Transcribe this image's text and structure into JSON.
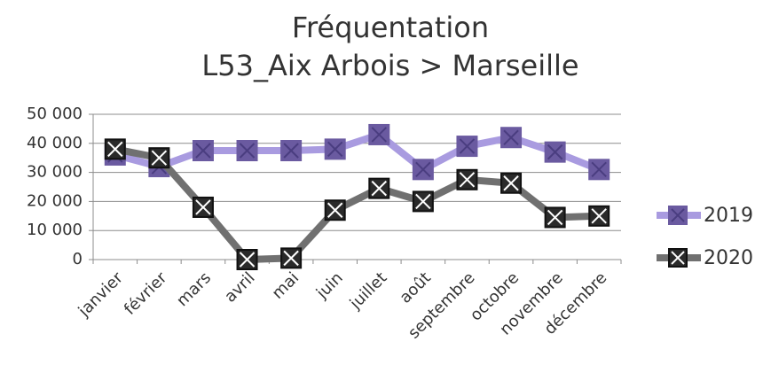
{
  "chart_data": {
    "type": "line",
    "title": "Fréquentation",
    "subtitle": "L53_Aix Arbois > Marseille",
    "categories": [
      "janvier",
      "février",
      "mars",
      "avril",
      "mai",
      "juin",
      "juillet",
      "août",
      "septembre",
      "octobre",
      "novembre",
      "décembre"
    ],
    "series": [
      {
        "name": "2019",
        "color": "#a99be0",
        "marker_color": "#6a5aa0",
        "values": [
          36000,
          32000,
          37500,
          37500,
          37500,
          38000,
          43000,
          31000,
          39000,
          42000,
          37000,
          31000
        ]
      },
      {
        "name": "2020",
        "color": "#707070",
        "marker_color": "#111111",
        "values": [
          38000,
          35000,
          18000,
          0,
          500,
          17000,
          24500,
          20000,
          27500,
          26300,
          14500,
          15000
        ]
      }
    ],
    "ylim": [
      0,
      50000
    ],
    "yticks": [
      0,
      {
        "value": 10000,
        "label": "10 000"
      },
      {
        "value": 20000,
        "label": "20 000"
      },
      {
        "value": 30000,
        "label": "30 000"
      },
      {
        "value": 40000,
        "label": "40 000"
      },
      {
        "value": 50000,
        "label": "50 000"
      }
    ],
    "grid": true,
    "legend": "right"
  }
}
